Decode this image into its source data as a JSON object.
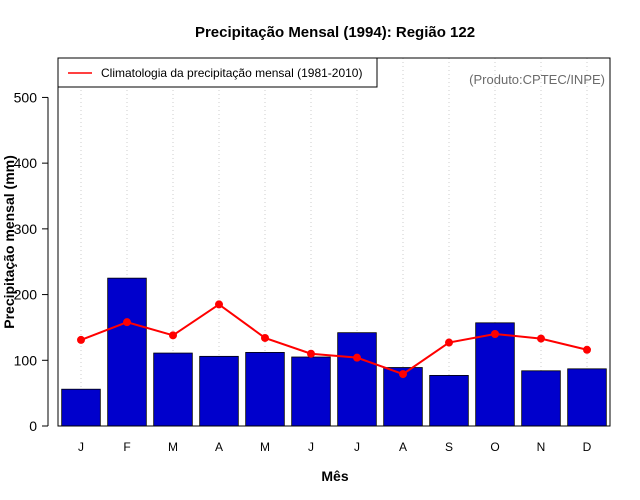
{
  "chart_data": {
    "type": "bar",
    "title": "Precipitação Mensal (1994): Região 122",
    "xlabel": "Mês",
    "ylabel": "Precipitação mensal (mm)",
    "ylim": [
      0,
      560
    ],
    "yticks": [
      0,
      100,
      200,
      300,
      400,
      500
    ],
    "categories": [
      "J",
      "F",
      "M",
      "A",
      "M",
      "J",
      "J",
      "A",
      "S",
      "O",
      "N",
      "D"
    ],
    "series": [
      {
        "name": "Precipitação mensal (1994)",
        "kind": "bar",
        "color": "#0000cc",
        "values": [
          56,
          225,
          111,
          106,
          112,
          105,
          142,
          89,
          77,
          157,
          84,
          87
        ]
      },
      {
        "name": "Climatologia da precipitação mensal (1981-2010)",
        "kind": "line",
        "color": "#ff0000",
        "values": [
          131,
          158,
          138,
          185,
          134,
          110,
          104,
          79,
          127,
          140,
          133,
          116
        ]
      }
    ],
    "legend": {
      "position": "top-left",
      "entries": [
        "Climatologia da precipitação mensal (1981-2010)"
      ]
    },
    "annotation": "(Produto:CPTEC/INPE)",
    "grid": "vertical-dotted"
  }
}
